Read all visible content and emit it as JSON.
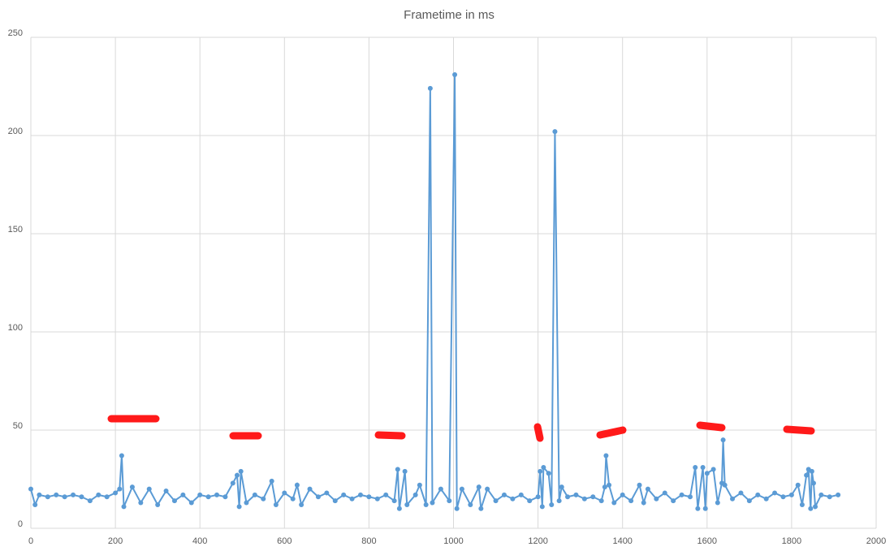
{
  "chart_data": {
    "type": "line",
    "title": "Frametime in ms",
    "x": [
      0,
      10,
      20,
      40,
      60,
      80,
      100,
      120,
      140,
      160,
      180,
      200,
      210,
      215,
      220,
      240,
      260,
      280,
      300,
      320,
      340,
      360,
      380,
      400,
      420,
      440,
      460,
      478,
      488,
      493,
      497,
      510,
      530,
      550,
      570,
      580,
      600,
      620,
      630,
      640,
      660,
      680,
      700,
      720,
      740,
      760,
      780,
      800,
      820,
      840,
      860,
      868,
      872,
      885,
      890,
      910,
      920,
      935,
      945,
      950,
      970,
      990,
      1003,
      1008,
      1020,
      1040,
      1060,
      1065,
      1080,
      1100,
      1120,
      1140,
      1160,
      1180,
      1200,
      1205,
      1210,
      1213,
      1225,
      1232,
      1240,
      1250,
      1256,
      1270,
      1290,
      1310,
      1330,
      1350,
      1358,
      1361,
      1368,
      1380,
      1400,
      1420,
      1440,
      1450,
      1460,
      1480,
      1500,
      1520,
      1540,
      1560,
      1572,
      1578,
      1590,
      1596,
      1600,
      1615,
      1625,
      1635,
      1638,
      1642,
      1660,
      1680,
      1700,
      1720,
      1740,
      1760,
      1780,
      1800,
      1815,
      1825,
      1835,
      1840,
      1845,
      1848,
      1852,
      1856,
      1870,
      1890,
      1910
    ],
    "series": [
      {
        "name": "Frametime",
        "color": "#5b9bd5",
        "values": [
          20,
          12,
          17,
          16,
          17,
          16,
          17,
          16,
          14,
          17,
          16,
          18,
          20,
          37,
          11,
          21,
          13,
          20,
          12,
          19,
          14,
          17,
          13,
          17,
          16,
          17,
          16,
          23,
          27,
          11,
          29,
          13,
          17,
          15,
          24,
          12,
          18,
          15,
          22,
          12,
          20,
          16,
          18,
          14,
          17,
          15,
          17,
          16,
          15,
          17,
          14,
          30,
          10,
          29,
          12,
          17,
          22,
          12,
          224,
          13,
          20,
          14,
          231,
          10,
          20,
          12,
          21,
          10,
          20,
          14,
          17,
          15,
          17,
          14,
          16,
          29,
          11,
          31,
          28,
          12,
          202,
          14,
          21,
          16,
          17,
          15,
          16,
          14,
          21,
          37,
          22,
          13,
          17,
          14,
          22,
          13,
          20,
          15,
          18,
          14,
          17,
          16,
          31,
          10,
          31,
          10,
          28,
          30,
          13,
          23,
          45,
          22,
          15,
          18,
          14,
          17,
          15,
          18,
          16,
          17,
          22,
          12,
          27,
          30,
          10,
          29,
          23,
          11,
          17,
          16,
          17
        ]
      }
    ],
    "xlim": [
      0,
      2000
    ],
    "xticks": [
      0,
      200,
      400,
      600,
      800,
      1000,
      1200,
      1400,
      1600,
      1800,
      2000
    ],
    "ylim": [
      0,
      250
    ],
    "yticks": [
      0,
      50,
      100,
      150,
      200,
      250
    ],
    "grid": true
  }
}
